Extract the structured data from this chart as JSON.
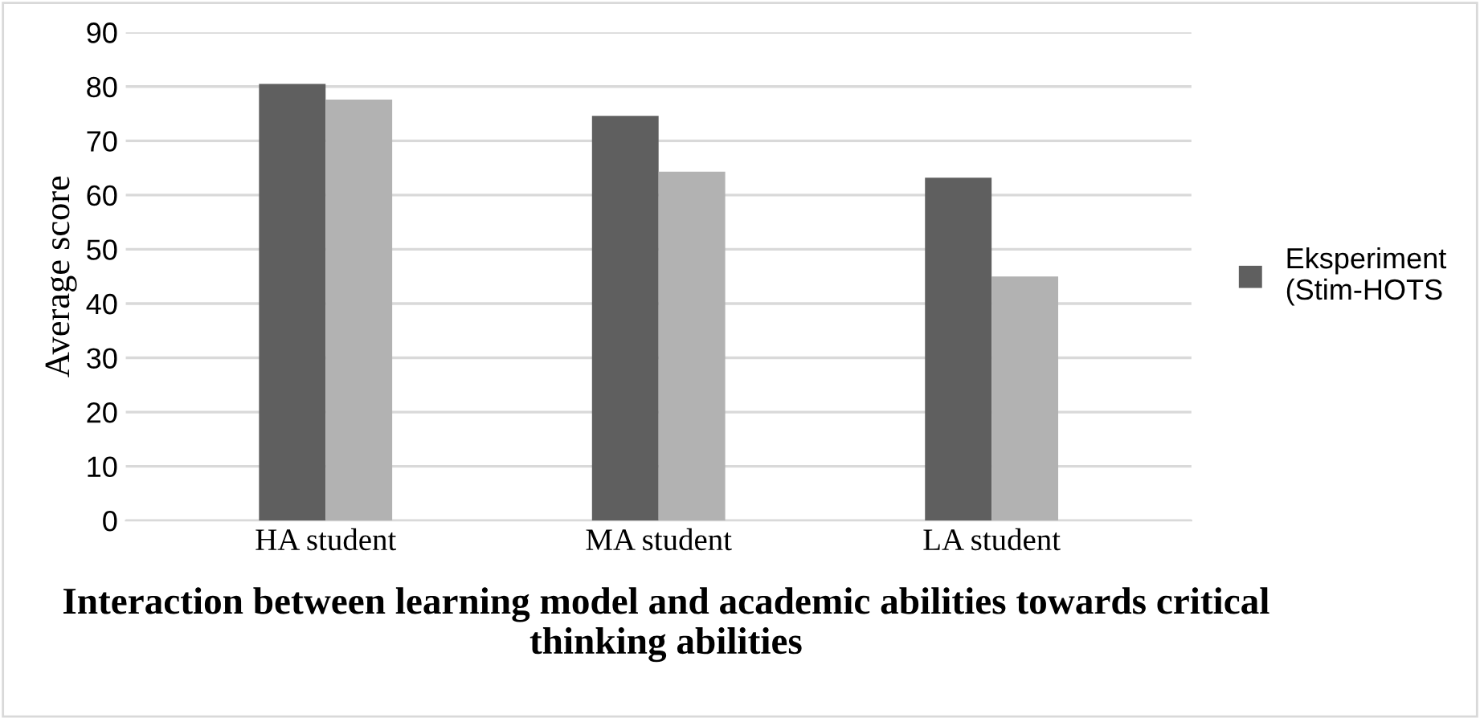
{
  "chart_data": {
    "type": "bar",
    "title": "Interaction between learning model and academic abilities towards critical thinking abilities",
    "ylabel": "Average score",
    "categories": [
      "HA student",
      "MA student",
      "LA student"
    ],
    "series": [
      {
        "name": "Eksperiment (Stim-HOTS",
        "color": "#5f5f5f",
        "values": [
          80.5,
          74.6,
          63.2
        ]
      },
      {
        "color": "#b2b2b2",
        "values": [
          77.6,
          64.3,
          45.0
        ]
      }
    ],
    "ylim": [
      0,
      90
    ],
    "yticks": [
      0,
      10,
      20,
      30,
      40,
      50,
      60,
      70,
      80,
      90
    ],
    "grid": "y",
    "legend": "right"
  }
}
